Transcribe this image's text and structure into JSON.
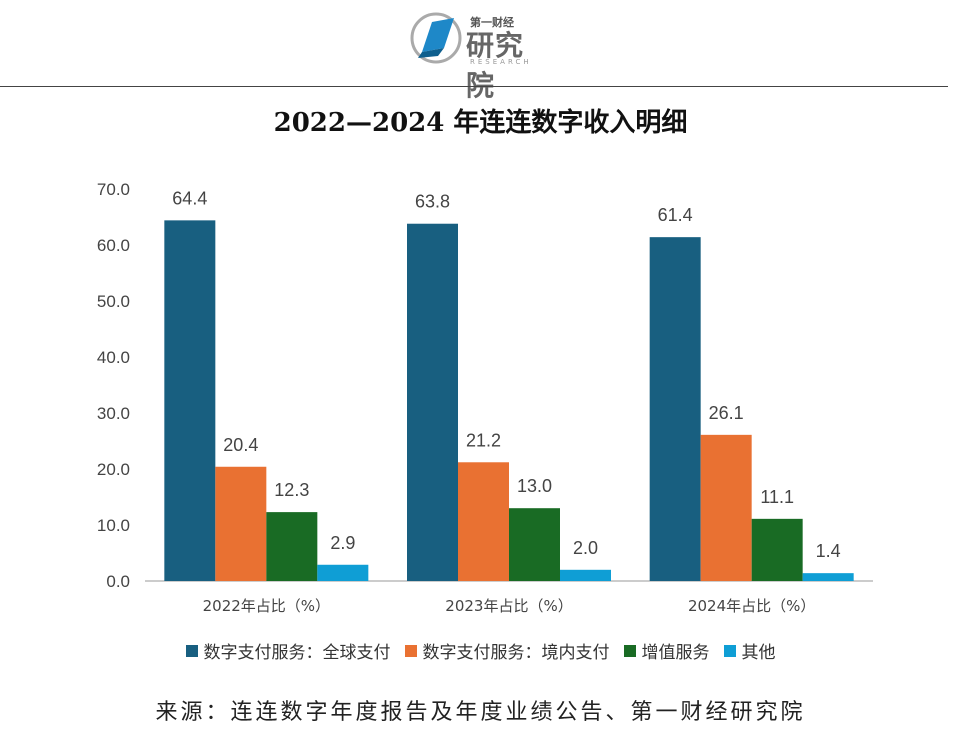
{
  "logo": {
    "top_text": "第一财经",
    "main_text": "研究院",
    "sub_text": "RESEARCH"
  },
  "chart_data": {
    "type": "bar",
    "title": "2022—2024 年连连数字收入明细",
    "categories": [
      "2022年占比（%）",
      "2023年占比（%）",
      "2024年占比（%）"
    ],
    "series": [
      {
        "name": "数字支付服务：全球支付",
        "color": "#185f80",
        "values": [
          64.4,
          63.8,
          61.4
        ]
      },
      {
        "name": "数字支付服务：境内支付",
        "color": "#e97132",
        "values": [
          20.4,
          21.2,
          26.1
        ]
      },
      {
        "name": "增值服务",
        "color": "#196b24",
        "values": [
          12.3,
          13.0,
          11.1
        ]
      },
      {
        "name": "其他",
        "color": "#0f9ed5",
        "values": [
          2.9,
          2.0,
          1.4
        ]
      }
    ],
    "ylim": [
      0,
      70
    ],
    "yticks": [
      "0.0",
      "10.0",
      "20.0",
      "30.0",
      "40.0",
      "50.0",
      "60.0",
      "70.0"
    ],
    "xlabel": "",
    "ylabel": "",
    "legend": "bottom"
  },
  "source": "来源：连连数字年度报告及年度业绩公告、第一财经研究院"
}
